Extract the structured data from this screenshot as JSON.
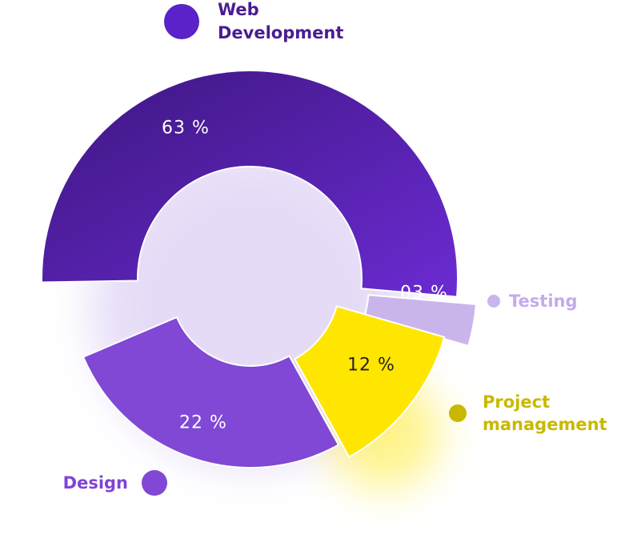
{
  "chart_data": {
    "type": "pie",
    "variant": "donut",
    "slices": [
      {
        "label": "Web Development",
        "value": 63,
        "display": "63 %",
        "color": "#5a22b5",
        "color_start": "#3d1680",
        "color_end": "#6b2bd2",
        "label_color": "#4a1d8f",
        "value_text_color": "#ffffff"
      },
      {
        "label": "Testing",
        "value": 3,
        "display": "03 %",
        "color": "#c9b5ec",
        "color_start": "#c9b5ec",
        "color_end": "#c9b5ec",
        "label_color": "#c4abec",
        "value_text_color": "#ffffff"
      },
      {
        "label": "Project management",
        "value": 12,
        "display": "12 %",
        "color": "#ffe600",
        "color_start": "#ffe600",
        "color_end": "#ffe600",
        "label_color": "#c9b800",
        "value_text_color": "#222222"
      },
      {
        "label": "Design",
        "value": 22,
        "display": "22 %",
        "color": "#8048d4",
        "color_start": "#8048d4",
        "color_end": "#8048d4",
        "label_color": "#7f43d6",
        "value_text_color": "#ffffff"
      }
    ],
    "legend": [
      {
        "label_lines": [
          "Web",
          "Development"
        ],
        "dot_color": "#5a22c8",
        "text_color": "#4a1d8f"
      },
      {
        "label_lines": [
          "Testing"
        ],
        "dot_color": "#c9b5ec",
        "text_color": "#c4abec"
      },
      {
        "label_lines": [
          "Project",
          "management"
        ],
        "dot_color": "#c9b800",
        "text_color": "#c9b800"
      },
      {
        "label_lines": [
          "Design"
        ],
        "dot_color": "#8048d4",
        "text_color": "#7f43d6"
      }
    ]
  }
}
